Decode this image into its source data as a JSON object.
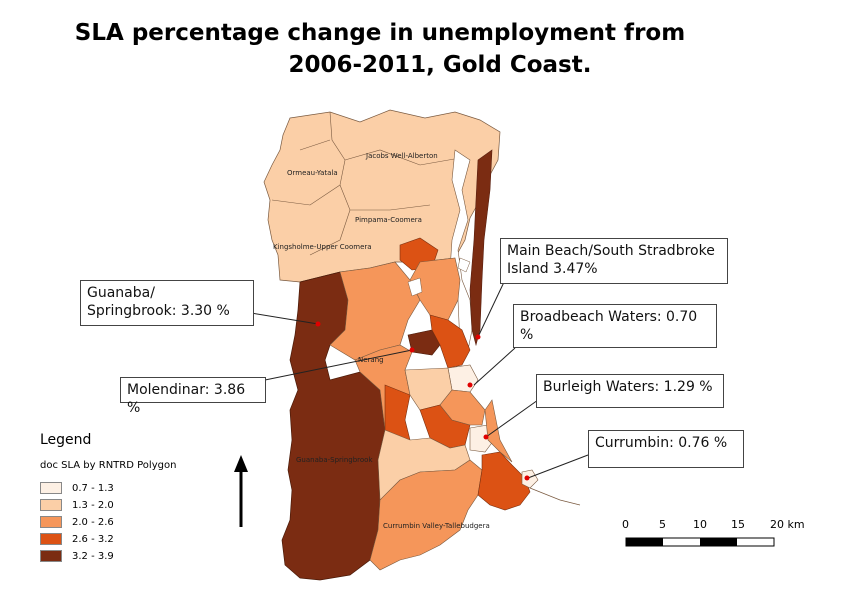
{
  "title_line1": "SLA percentage change in unemployment from",
  "title_line2": "2006-2011, Gold Coast.",
  "callouts": {
    "main_beach": "Main Beach/South Stradbroke Island 3.47%",
    "guanaba": "Guanaba/ Springbrook: 3.30 %",
    "broadbeach": "Broadbeach Waters: 0.70 %",
    "molendinar": "Molendinar: 3.86 %",
    "burleigh": "Burleigh Waters: 1.29 %",
    "currumbin": "Currumbin: 0.76 %"
  },
  "place_labels": {
    "jacobs_well": "Jacobs Well-Alberton",
    "ormeau": "Ormeau-Yatala",
    "pimpama": "Pimpama-Coomera",
    "kingsholme": "Kingsholme-Upper Coomera",
    "nerang": "Nerang",
    "guanaba_springbrook": "Guanaba-Springbrook",
    "currumbin_valley": "Currumbin Valley-Tallebudgera"
  },
  "legend": {
    "title": "Legend",
    "subtitle": "doc SLA by RNTRD Polygon",
    "classes": [
      {
        "label": "0.7 - 1.3",
        "color": "#fdf0e4"
      },
      {
        "label": "1.3 - 2.0",
        "color": "#fbcfa7"
      },
      {
        "label": "2.0 - 2.6",
        "color": "#f5965a"
      },
      {
        "label": "2.6 - 3.2",
        "color": "#dc5214"
      },
      {
        "label": "3.2 - 3.9",
        "color": "#7b2c12"
      }
    ]
  },
  "scale_bar": {
    "ticks": [
      "0",
      "5",
      "10",
      "15",
      "20 km"
    ]
  },
  "north_arrow": "north-arrow-icon"
}
